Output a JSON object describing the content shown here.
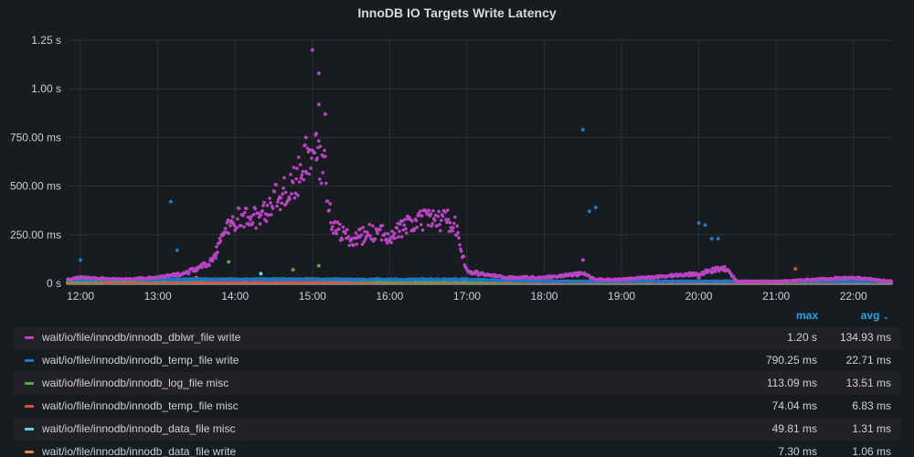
{
  "panel": {
    "title": "InnoDB IO Targets Write Latency"
  },
  "chart_data": {
    "type": "scatter",
    "title": "InnoDB IO Targets Write Latency",
    "xlabel": "",
    "ylabel": "",
    "x_ticks": [
      "12:00",
      "13:00",
      "14:00",
      "15:00",
      "16:00",
      "17:00",
      "18:00",
      "19:00",
      "20:00",
      "21:00",
      "22:00"
    ],
    "y_ticks": [
      "0 s",
      "250.00 ms",
      "500.00 ms",
      "750.00 ms",
      "1.00 s",
      "1.25 s"
    ],
    "x_range": [
      "11:50",
      "22:30"
    ],
    "ylim": [
      0,
      1.25
    ],
    "y_unit": "s",
    "grid": true,
    "legend_position": "bottom",
    "series": [
      {
        "name": "wait/io/file/innodb/innodb_dblwr_file write",
        "color": "#b845c2",
        "max": 1.2,
        "avg": 0.13493,
        "segments": [
          [
            "11:50",
            0.02
          ],
          [
            "12:00",
            0.03
          ],
          [
            "12:30",
            0.02
          ],
          [
            "13:00",
            0.03
          ],
          [
            "13:20",
            0.05
          ],
          [
            "13:40",
            0.1
          ],
          [
            "13:50",
            0.24
          ],
          [
            "14:00",
            0.33
          ],
          [
            "14:20",
            0.34
          ],
          [
            "14:30",
            0.43
          ],
          [
            "14:45",
            0.5
          ],
          [
            "14:55",
            0.62
          ],
          [
            "15:00",
            0.68
          ],
          [
            "15:10",
            0.58
          ],
          [
            "15:15",
            0.3
          ],
          [
            "15:30",
            0.22
          ],
          [
            "15:45",
            0.26
          ],
          [
            "16:00",
            0.25
          ],
          [
            "16:15",
            0.3
          ],
          [
            "16:30",
            0.33
          ],
          [
            "16:50",
            0.32
          ],
          [
            "17:00",
            0.06
          ],
          [
            "17:30",
            0.03
          ],
          [
            "18:00",
            0.03
          ],
          [
            "18:30",
            0.05
          ],
          [
            "18:40",
            0.02
          ],
          [
            "19:00",
            0.02
          ],
          [
            "19:40",
            0.04
          ],
          [
            "20:00",
            0.05
          ],
          [
            "20:20",
            0.08
          ],
          [
            "20:30",
            0.01
          ],
          [
            "21:00",
            0.01
          ],
          [
            "22:00",
            0.03
          ],
          [
            "22:30",
            0.01
          ]
        ],
        "spikes": [
          [
            "15:00",
            1.2
          ],
          [
            "15:05",
            1.08
          ],
          [
            "15:05",
            0.92
          ],
          [
            "15:10",
            0.87
          ],
          [
            "15:03",
            0.77
          ],
          [
            "14:55",
            0.75
          ],
          [
            "18:30",
            0.12
          ],
          [
            "20:00",
            0.03
          ]
        ]
      },
      {
        "name": "wait/io/file/innodb/innodb_temp_file write",
        "color": "#1f78c1",
        "max": 0.79025,
        "avg": 0.02271,
        "segments": [
          [
            "11:50",
            0.02
          ],
          [
            "13:00",
            0.02
          ],
          [
            "14:00",
            0.02
          ],
          [
            "15:00",
            0.02
          ],
          [
            "16:00",
            0.02
          ],
          [
            "17:00",
            0.02
          ],
          [
            "18:00",
            0.01
          ],
          [
            "19:00",
            0.01
          ],
          [
            "20:00",
            0.01
          ],
          [
            "21:00",
            0.01
          ],
          [
            "22:30",
            0.01
          ]
        ],
        "spikes": [
          [
            "12:00",
            0.12
          ],
          [
            "13:10",
            0.42
          ],
          [
            "13:15",
            0.17
          ],
          [
            "13:45",
            0.13
          ],
          [
            "18:30",
            0.79
          ],
          [
            "18:40",
            0.39
          ],
          [
            "18:35",
            0.37
          ],
          [
            "20:00",
            0.31
          ],
          [
            "20:05",
            0.3
          ],
          [
            "20:10",
            0.23
          ],
          [
            "20:15",
            0.23
          ]
        ]
      },
      {
        "name": "wait/io/file/innodb/innodb_log_file misc",
        "color": "#5aa64b",
        "max": 0.11309,
        "avg": 0.01351,
        "segments": [
          [
            "11:50",
            0.01
          ],
          [
            "14:00",
            0.02
          ],
          [
            "15:00",
            0.02
          ],
          [
            "16:00",
            0.01
          ],
          [
            "22:30",
            0.01
          ]
        ],
        "spikes": [
          [
            "13:55",
            0.11
          ],
          [
            "14:45",
            0.07
          ],
          [
            "15:05",
            0.09
          ]
        ]
      },
      {
        "name": "wait/io/file/innodb/innodb_temp_file misc",
        "color": "#e24d42",
        "max": 0.07404,
        "avg": 0.00683,
        "segments": [
          [
            "11:50",
            0.005
          ],
          [
            "22:30",
            0.005
          ]
        ],
        "spikes": [
          [
            "21:15",
            0.074
          ],
          [
            "13:30",
            0.03
          ]
        ]
      },
      {
        "name": "wait/io/file/innodb/innodb_data_file misc",
        "color": "#6ed0e0",
        "max": 0.04981,
        "avg": 0.00131,
        "segments": [
          [
            "11:50",
            0.002
          ],
          [
            "22:30",
            0.002
          ]
        ],
        "spikes": [
          [
            "14:20",
            0.05
          ]
        ]
      },
      {
        "name": "wait/io/file/innodb/innodb_data_file write",
        "color": "#ef843c",
        "max": 0.0073,
        "avg": 0.00106,
        "segments": [
          [
            "11:50",
            0.001
          ],
          [
            "22:30",
            0.001
          ]
        ],
        "spikes": []
      }
    ]
  },
  "legend": {
    "header": {
      "max": "max",
      "avg": "avg"
    },
    "rows": [
      {
        "name": "wait/io/file/innodb/innodb_dblwr_file write",
        "max": "1.20 s",
        "avg": "134.93 ms"
      },
      {
        "name": "wait/io/file/innodb/innodb_temp_file write",
        "max": "790.25 ms",
        "avg": "22.71 ms"
      },
      {
        "name": "wait/io/file/innodb/innodb_log_file misc",
        "max": "113.09 ms",
        "avg": "13.51 ms"
      },
      {
        "name": "wait/io/file/innodb/innodb_temp_file misc",
        "max": "74.04 ms",
        "avg": "6.83 ms"
      },
      {
        "name": "wait/io/file/innodb/innodb_data_file misc",
        "max": "49.81 ms",
        "avg": "1.31 ms"
      },
      {
        "name": "wait/io/file/innodb/innodb_data_file write",
        "max": "7.30 ms",
        "avg": "1.06 ms"
      }
    ]
  },
  "colors": {
    "background": "#181b1f",
    "grid": "#2c3235",
    "accent": "#33a2e5"
  }
}
